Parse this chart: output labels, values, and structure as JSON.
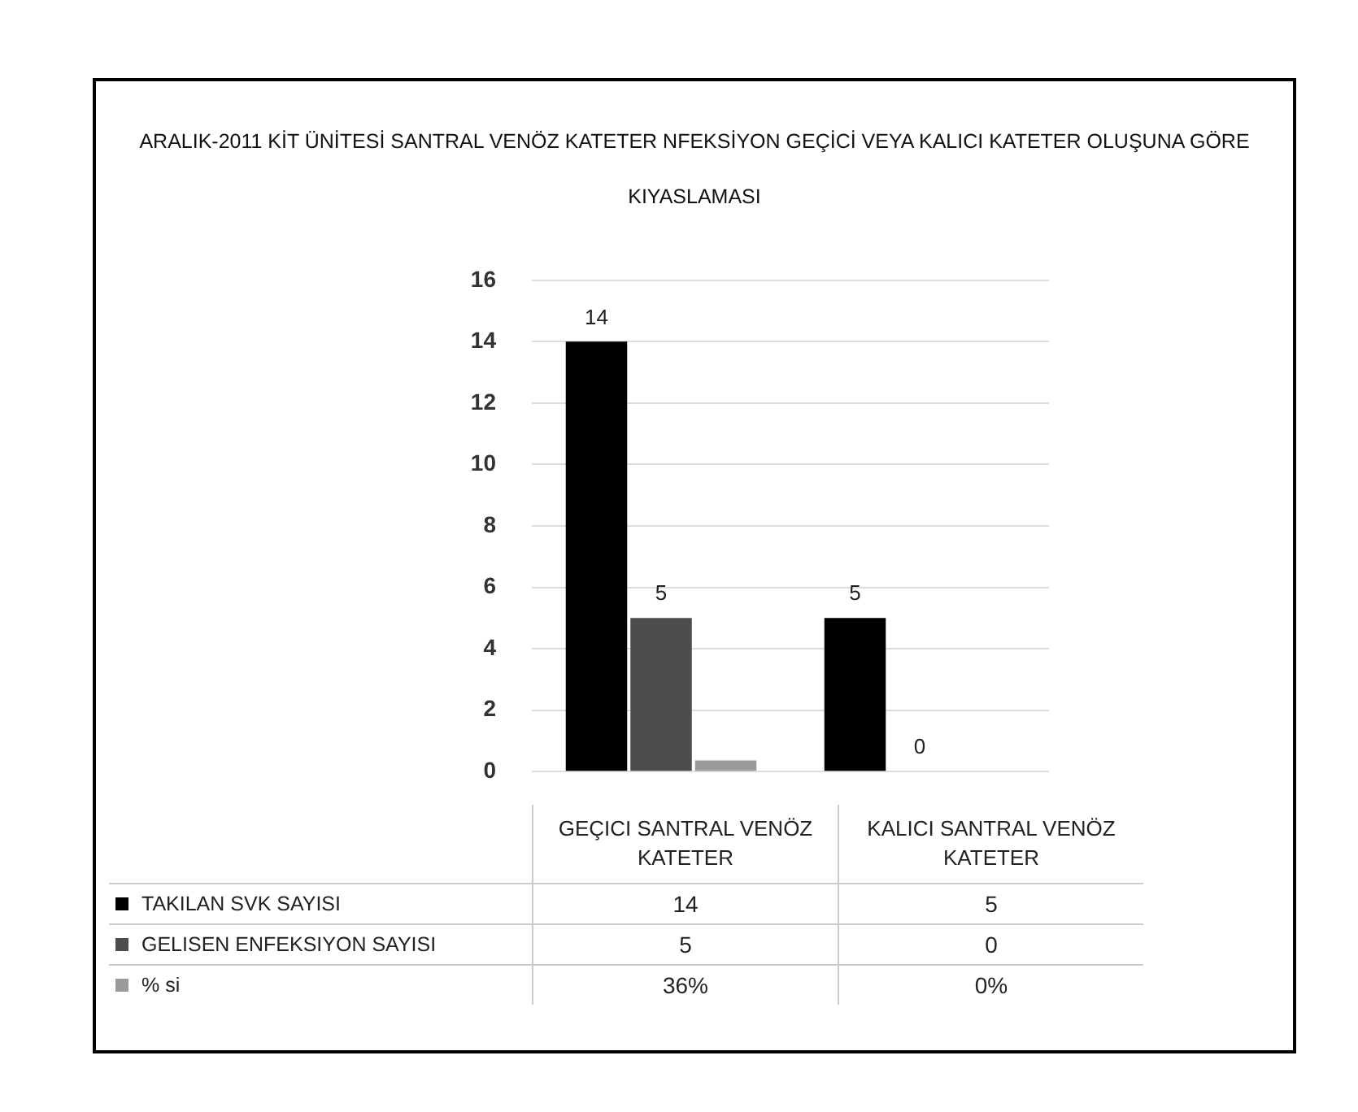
{
  "chart_data": {
    "type": "bar",
    "title": "ARALIK-2011 KİT ÜNİTESİ SANTRAL VENÖZ KATETER NFEKSİYON GEÇİCİ VEYA KALICI KATETER OLUŞUNA GÖRE KIYASLAMASI",
    "categories": [
      "GEÇICI SANTRAL VENÖZ KATETER",
      "KALICI SANTRAL VENÖZ KATETER"
    ],
    "series": [
      {
        "name": "TAKILAN SVK SAYISI",
        "color": "#000000",
        "values": [
          14,
          5
        ],
        "value_labels": [
          "14",
          "5"
        ]
      },
      {
        "name": "GELISEN ENFEKSIYON SAYISI",
        "color": "#4d4d4d",
        "values": [
          5,
          0
        ],
        "value_labels": [
          "5",
          "0"
        ]
      },
      {
        "name": "% si",
        "color": "#9a9a9a",
        "values": [
          0.36,
          0
        ],
        "value_labels": [
          "36%",
          "0%"
        ]
      }
    ],
    "ylim": [
      0,
      16
    ],
    "yticks": [
      0,
      2,
      4,
      6,
      8,
      10,
      12,
      14,
      16
    ],
    "grid": "y",
    "legend": "bottom",
    "data_labels": true
  }
}
